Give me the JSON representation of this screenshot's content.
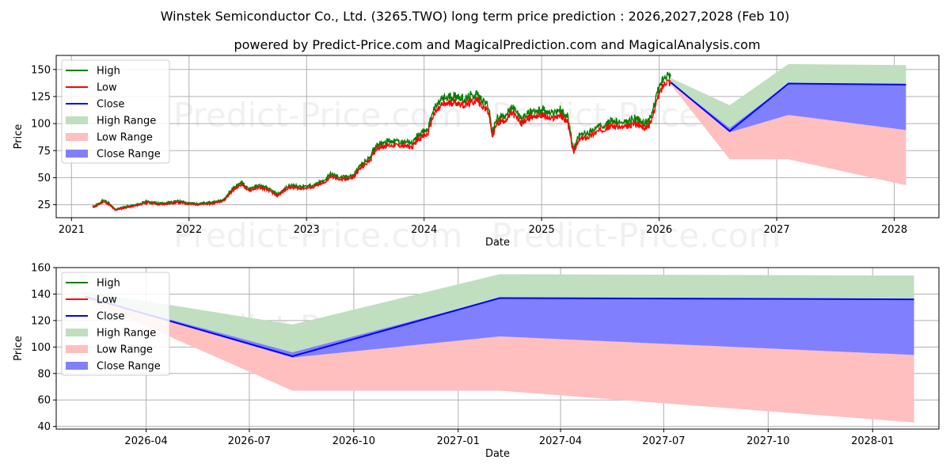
{
  "title": "Winstek Semiconductor Co., Ltd. (3265.TWO) long term price prediction : 2026,2027,2028 (Feb 10)",
  "subtitle": "powered by Predict-Price.com and MagicalPrediction.com and MagicalAnalysis.com",
  "watermark": "Predict-Price.com",
  "colors": {
    "high": "#008000",
    "low": "#ff0000",
    "close": "#0000ff",
    "high_range": "#bfdfbf",
    "low_range": "#ffbfbf",
    "close_range": "#8080ff",
    "grid": "#b0b0b0"
  },
  "legend": [
    "High",
    "Low",
    "Close",
    "High Range",
    "Low Range",
    "Close Range"
  ],
  "chart_data": [
    {
      "type": "line",
      "title": "",
      "xlabel": "Date",
      "ylabel": "Price",
      "xlim": [
        2020.87,
        2028.38
      ],
      "ylim": [
        13,
        163
      ],
      "xticks": [
        2021,
        2022,
        2023,
        2024,
        2025,
        2026,
        2027,
        2028
      ],
      "xtick_labels": [
        "2021",
        "2022",
        "2023",
        "2024",
        "2025",
        "2026",
        "2027",
        "2028"
      ],
      "yticks": [
        25,
        50,
        75,
        100,
        125,
        150
      ],
      "legend_position": "upper-left",
      "history_close": [
        [
          2021.18,
          22.5
        ],
        [
          2021.22,
          24
        ],
        [
          2021.27,
          28
        ],
        [
          2021.32,
          25
        ],
        [
          2021.37,
          20
        ],
        [
          2021.45,
          22
        ],
        [
          2021.55,
          24
        ],
        [
          2021.65,
          27
        ],
        [
          2021.75,
          25
        ],
        [
          2021.9,
          27
        ],
        [
          2022.05,
          25
        ],
        [
          2022.2,
          26
        ],
        [
          2022.3,
          29
        ],
        [
          2022.37,
          38
        ],
        [
          2022.45,
          44
        ],
        [
          2022.5,
          38
        ],
        [
          2022.6,
          41
        ],
        [
          2022.68,
          38
        ],
        [
          2022.75,
          33
        ],
        [
          2022.85,
          41
        ],
        [
          2022.95,
          40
        ],
        [
          2023.05,
          41
        ],
        [
          2023.15,
          45
        ],
        [
          2023.2,
          51
        ],
        [
          2023.3,
          48
        ],
        [
          2023.4,
          50
        ],
        [
          2023.45,
          58
        ],
        [
          2023.5,
          62
        ],
        [
          2023.55,
          68
        ],
        [
          2023.6,
          78
        ],
        [
          2023.7,
          80
        ],
        [
          2023.8,
          80
        ],
        [
          2023.9,
          78
        ],
        [
          2023.95,
          86
        ],
        [
          2024.03,
          90
        ],
        [
          2024.08,
          108
        ],
        [
          2024.15,
          117
        ],
        [
          2024.25,
          120
        ],
        [
          2024.35,
          117
        ],
        [
          2024.45,
          122
        ],
        [
          2024.5,
          116
        ],
        [
          2024.55,
          110
        ],
        [
          2024.58,
          88
        ],
        [
          2024.62,
          100
        ],
        [
          2024.7,
          104
        ],
        [
          2024.75,
          110
        ],
        [
          2024.83,
          100
        ],
        [
          2024.9,
          106
        ],
        [
          2025.0,
          108
        ],
        [
          2025.08,
          104
        ],
        [
          2025.15,
          108
        ],
        [
          2025.22,
          102
        ],
        [
          2025.27,
          73
        ],
        [
          2025.32,
          85
        ],
        [
          2025.4,
          88
        ],
        [
          2025.5,
          94
        ],
        [
          2025.6,
          98
        ],
        [
          2025.7,
          96
        ],
        [
          2025.8,
          100
        ],
        [
          2025.88,
          96
        ],
        [
          2025.93,
          100
        ],
        [
          2025.97,
          118
        ],
        [
          2026.02,
          132
        ],
        [
          2026.06,
          140
        ],
        [
          2026.1,
          138
        ]
      ],
      "forecast": {
        "x": [
          2026.1,
          2026.6,
          2027.1,
          2028.1
        ],
        "close": [
          138,
          93,
          137,
          136
        ],
        "high_range_upper": [
          142,
          117,
          155,
          154
        ],
        "high_range_lower": [
          138,
          96,
          137,
          136
        ],
        "close_range_upper": [
          138,
          96,
          137,
          136
        ],
        "close_range_lower": [
          138,
          92,
          108,
          94
        ],
        "low_range_upper": [
          138,
          92,
          108,
          94
        ],
        "low_range_lower": [
          136,
          67,
          67,
          43
        ]
      }
    },
    {
      "type": "line",
      "title": "",
      "xlabel": "Date",
      "ylabel": "Price",
      "xlim": [
        2026.03,
        2028.16
      ],
      "ylim": [
        38,
        160
      ],
      "xticks": [
        2026.247,
        2026.496,
        2026.748,
        2027.0,
        2027.247,
        2027.496,
        2027.748,
        2028.0
      ],
      "xtick_labels": [
        "2026-04",
        "2026-07",
        "2026-10",
        "2027-01",
        "2027-04",
        "2027-07",
        "2027-10",
        "2028-01"
      ],
      "yticks": [
        40,
        60,
        80,
        100,
        120,
        140,
        160
      ],
      "legend_position": "upper-left",
      "forecast": {
        "x": [
          2026.1,
          2026.6,
          2027.1,
          2028.1
        ],
        "close": [
          138,
          93,
          137,
          136
        ],
        "high_range_upper": [
          142,
          117,
          155,
          154
        ],
        "high_range_lower": [
          138,
          96,
          137,
          136
        ],
        "close_range_upper": [
          138,
          96,
          137,
          136
        ],
        "close_range_lower": [
          138,
          92,
          108,
          94
        ],
        "low_range_upper": [
          138,
          92,
          108,
          94
        ],
        "low_range_lower": [
          136,
          67,
          67,
          43
        ]
      }
    }
  ]
}
